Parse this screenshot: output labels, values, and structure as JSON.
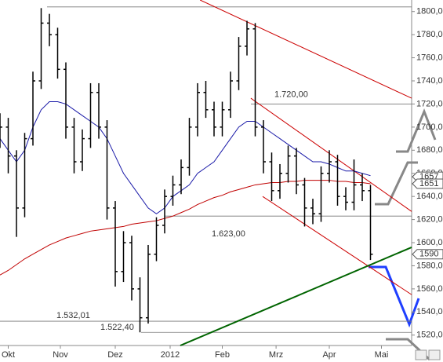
{
  "chart_data": {
    "type": "ohlc",
    "x": [
      0,
      3,
      6,
      9,
      12,
      15,
      18,
      21,
      24,
      27,
      30,
      33,
      36,
      39,
      42,
      45,
      48,
      51,
      54,
      57,
      60,
      63,
      66,
      69,
      72,
      75,
      78,
      81,
      84,
      87,
      90,
      93,
      96,
      99,
      102,
      105,
      108,
      111,
      114,
      117,
      120,
      123,
      126,
      129,
      132,
      135
    ],
    "open": [
      1690,
      1700,
      1675,
      1630,
      1690,
      1740,
      1790,
      1780,
      1750,
      1700,
      1670,
      1690,
      1730,
      1700,
      1630,
      1575,
      1600,
      1560,
      1535,
      1590,
      1615,
      1640,
      1650,
      1665,
      1700,
      1730,
      1715,
      1700,
      1715,
      1740,
      1770,
      1785,
      1700,
      1670,
      1645,
      1660,
      1675,
      1650,
      1630,
      1625,
      1660,
      1670,
      1640,
      1635,
      1650,
      1645
    ],
    "high": [
      1712,
      1708,
      1680,
      1695,
      1748,
      1803,
      1798,
      1786,
      1756,
      1708,
      1698,
      1738,
      1738,
      1706,
      1636,
      1610,
      1606,
      1570,
      1598,
      1622,
      1646,
      1658,
      1672,
      1708,
      1738,
      1740,
      1722,
      1722,
      1748,
      1778,
      1792,
      1790,
      1706,
      1678,
      1668,
      1684,
      1682,
      1656,
      1638,
      1666,
      1680,
      1676,
      1648,
      1672,
      1660,
      1650
    ],
    "low": [
      1682,
      1660,
      1605,
      1622,
      1684,
      1733,
      1770,
      1742,
      1690,
      1660,
      1662,
      1682,
      1690,
      1620,
      1562,
      1566,
      1550,
      1522.4,
      1530,
      1584,
      1608,
      1632,
      1642,
      1658,
      1692,
      1708,
      1692,
      1692,
      1708,
      1732,
      1762,
      1692,
      1660,
      1636,
      1638,
      1652,
      1642,
      1614,
      1616,
      1618,
      1652,
      1632,
      1628,
      1628,
      1636,
      1585
    ],
    "close": [
      1700,
      1675,
      1630,
      1690,
      1740,
      1790,
      1780,
      1750,
      1700,
      1670,
      1690,
      1730,
      1700,
      1630,
      1575,
      1600,
      1560,
      1535,
      1590,
      1615,
      1640,
      1650,
      1665,
      1700,
      1730,
      1715,
      1700,
      1715,
      1740,
      1770,
      1785,
      1700,
      1670,
      1645,
      1660,
      1675,
      1650,
      1630,
      1625,
      1660,
      1670,
      1640,
      1635,
      1650,
      1645,
      1590
    ],
    "color": "#000000",
    "overlays": [
      {
        "color": "#1a1aa8",
        "values": [
          1690,
          1680,
          1670,
          1680,
          1700,
          1715,
          1722,
          1722,
          1720,
          1715,
          1710,
          1705,
          1700,
          1690,
          1675,
          1660,
          1650,
          1640,
          1630,
          1625,
          1630,
          1640,
          1645,
          1650,
          1660,
          1665,
          1670,
          1680,
          1690,
          1700,
          1705,
          1705,
          1700,
          1695,
          1690,
          1685,
          1680,
          1675,
          1670,
          1670,
          1668,
          1665,
          1662,
          1662,
          1660,
          1658
        ]
      },
      {
        "color": "#c00000",
        "values": [
          1572,
          1576,
          1581,
          1586,
          1590,
          1594,
          1598,
          1601,
          1604,
          1606,
          1608,
          1610,
          1611,
          1612,
          1613,
          1614,
          1616,
          1617,
          1618,
          1619,
          1621,
          1623,
          1626,
          1629,
          1633,
          1636,
          1639,
          1641,
          1644,
          1646,
          1648,
          1650,
          1651,
          1652,
          1652,
          1653,
          1653,
          1654,
          1654,
          1654,
          1654,
          1653,
          1653,
          1652,
          1652,
          1651
        ]
      }
    ],
    "trendlines": [
      {
        "color": "#cc0000",
        "x": [
          72.9,
          150
        ],
        "y": [
          1810,
          1725
        ]
      },
      {
        "color": "#cc0000",
        "x": [
          91.4,
          150
        ],
        "y": [
          1725,
          1627
        ]
      },
      {
        "color": "#cc0000",
        "x": [
          95.7,
          150
        ],
        "y": [
          1640,
          1555
        ]
      },
      {
        "color": "#006400",
        "x": [
          65.7,
          150
        ],
        "y": [
          1511,
          1596
        ]
      }
    ],
    "levels": [
      1804,
      {
        "value": 1720,
        "label": "1.720,00"
      },
      {
        "value": 1623,
        "label": "1.623,00"
      },
      {
        "value": 1532.01,
        "label": "1.532,01"
      },
      {
        "value": 1522.4,
        "label": "1.522,40"
      }
    ],
    "price_tags": [
      1657,
      1651,
      1590
    ],
    "xlim": [
      0,
      150
    ],
    "ylim": [
      1511,
      1810
    ],
    "xticks": [
      {
        "value": 3,
        "label": "Okt"
      },
      {
        "value": 22,
        "label": "Nov"
      },
      {
        "value": 42,
        "label": "Dez"
      },
      {
        "value": 62,
        "label": "2012"
      },
      {
        "value": 81,
        "label": "Feb"
      },
      {
        "value": 100.6,
        "label": "Mrz"
      },
      {
        "value": 120,
        "label": "Apr"
      },
      {
        "value": 139,
        "label": "Mai"
      }
    ],
    "yticks": [
      {
        "value": 1520,
        "label": "1520,00"
      },
      {
        "value": 1540,
        "label": "1540,00"
      },
      {
        "value": 1560,
        "label": "1560,00"
      },
      {
        "value": 1580,
        "label": "1580,00"
      },
      {
        "value": 1600,
        "label": "1600,00"
      },
      {
        "value": 1620,
        "label": "1620,00"
      },
      {
        "value": 1640,
        "label": "1640,00"
      },
      {
        "value": 1660,
        "label": "1660,00"
      },
      {
        "value": 1680,
        "label": "1680,00"
      },
      {
        "value": 1700,
        "label": "1700,00"
      },
      {
        "value": 1720,
        "label": "1720,00"
      },
      {
        "value": 1740,
        "label": "1740,00"
      },
      {
        "value": 1760,
        "label": "1760,00"
      },
      {
        "value": 1780,
        "label": "1780,00"
      },
      {
        "value": 1800,
        "label": "1800,00"
      }
    ]
  }
}
